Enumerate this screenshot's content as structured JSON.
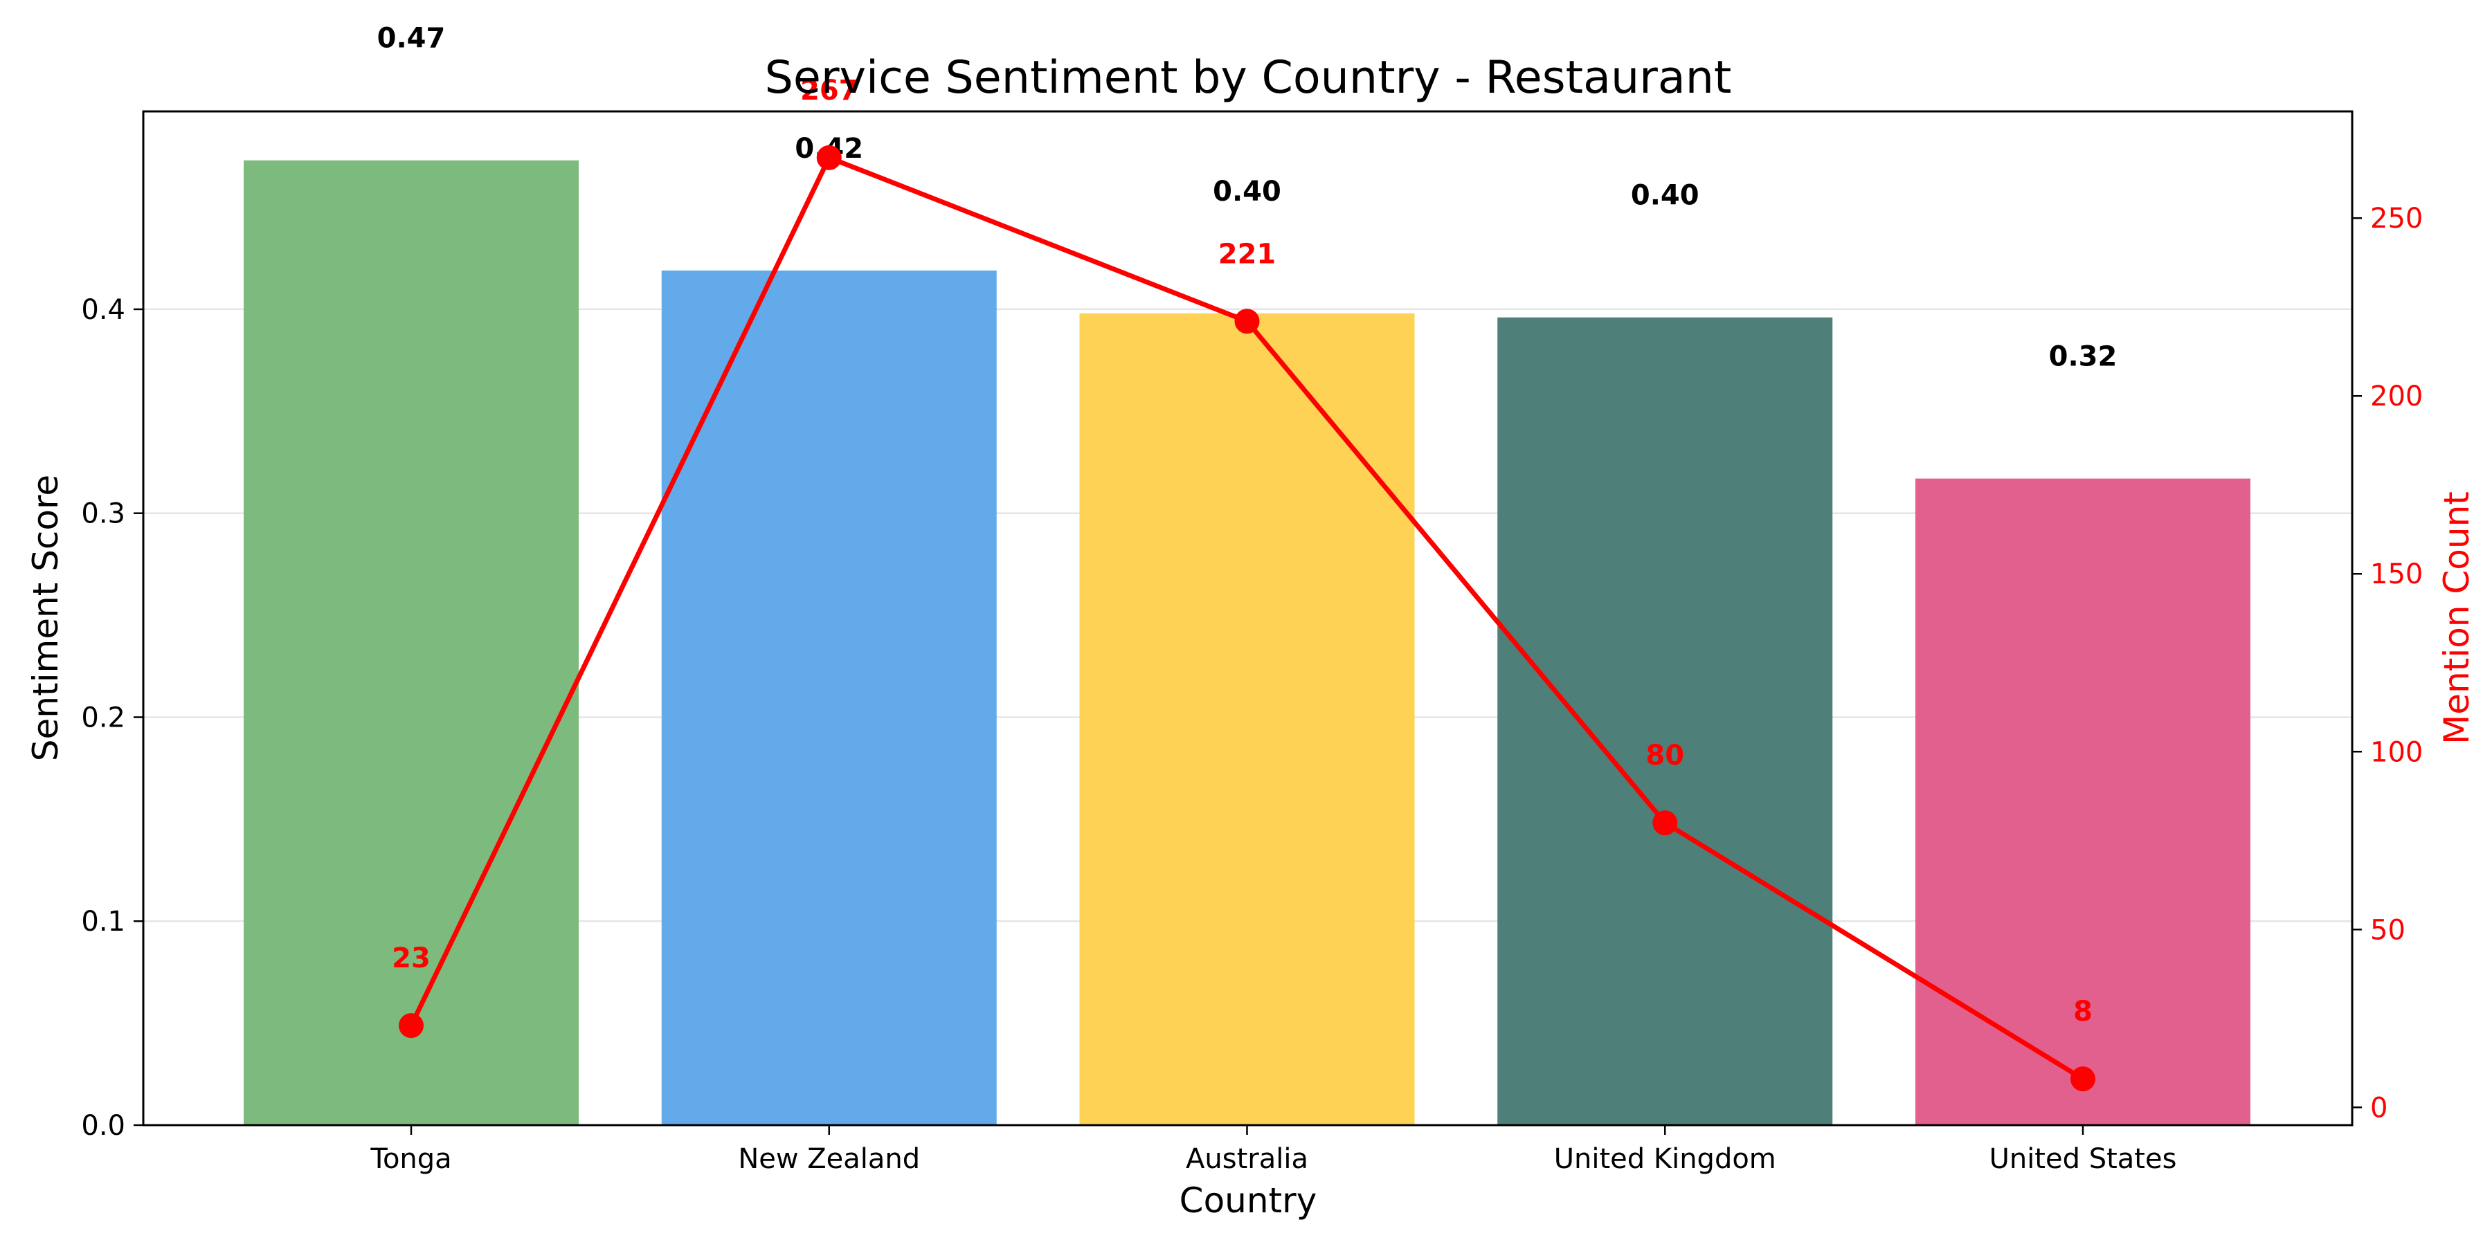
{
  "chart_data": {
    "type": "bar",
    "title": "Service Sentiment by Country - Restaurant",
    "xlabel": "Country",
    "ylabel": "Sentiment Score",
    "y2label": "Mention Count",
    "categories": [
      "Tonga",
      "New Zealand",
      "Australia",
      "United Kingdom",
      "United States"
    ],
    "series": [
      {
        "type": "bar",
        "axis": "left",
        "values": [
          0.473,
          0.419,
          0.398,
          0.396,
          0.317
        ],
        "value_labels": [
          "0.47",
          "0.42",
          "0.40",
          "0.40",
          "0.32"
        ],
        "colors": [
          "#7dba7d",
          "#62aaea",
          "#fed255",
          "#4e8079",
          "#e2608d"
        ]
      },
      {
        "type": "line",
        "axis": "right",
        "values": [
          23,
          267,
          221,
          80,
          8
        ],
        "value_labels": [
          "23",
          "267",
          "221",
          "80",
          "8"
        ],
        "color": "#ff0000"
      }
    ],
    "ylim": [
      0,
      0.497
    ],
    "yticks": [
      "0.0",
      "0.1",
      "0.2",
      "0.3",
      "0.4"
    ],
    "y2lim": [
      -5,
      280
    ],
    "y2ticks": [
      "0",
      "50",
      "100",
      "150",
      "200",
      "250"
    ],
    "grid": "horizontal",
    "legend": "none"
  }
}
